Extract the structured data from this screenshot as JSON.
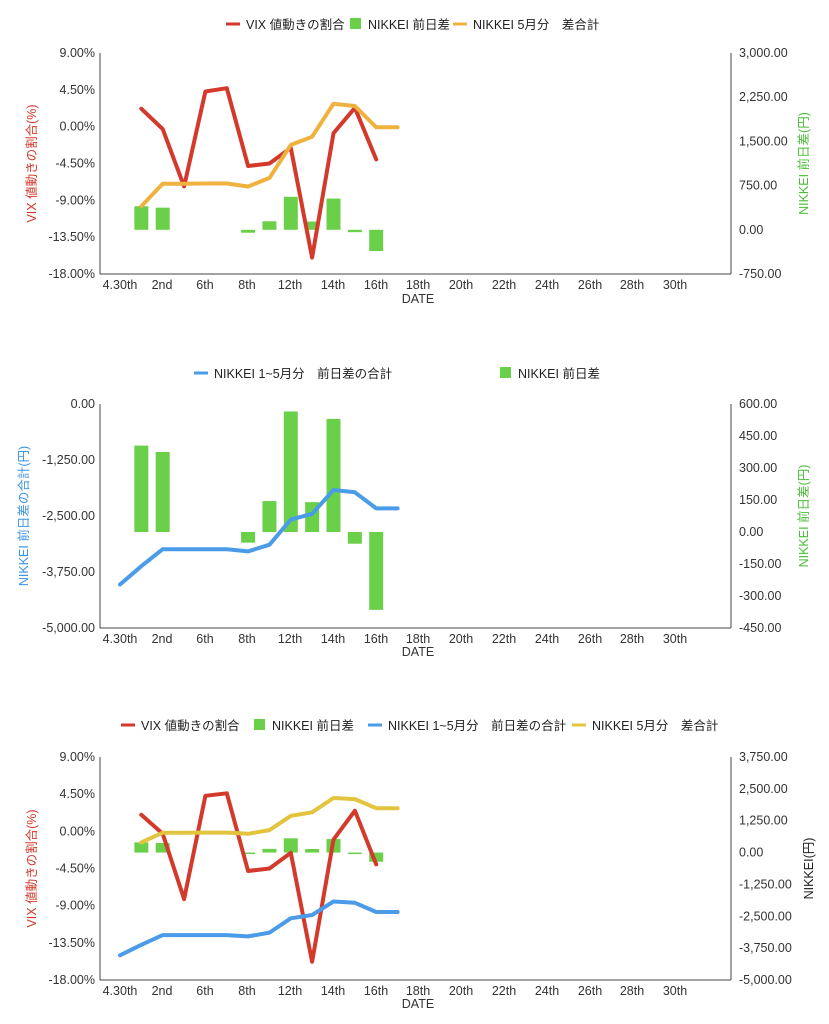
{
  "colors": {
    "vix": "#d33a2c",
    "diff_bar": "#6ad04a",
    "cum_may_orange": "#f0b23e",
    "cum_may_yellow": "#e3c43e",
    "total_blue": "#4a9be8",
    "axis": "#333333"
  },
  "chart_data": [
    {
      "type": "line",
      "legend": [
        "VIX 値動きの割合",
        "NIKKEI 前日差",
        "NIKKEI 5月分　差合計"
      ],
      "xlabel": "DATE",
      "x_ticks": [
        "4.30th",
        "2nd",
        "6th",
        "8th",
        "12th",
        "14th",
        "16th",
        "18th",
        "20th",
        "22th",
        "24th",
        "26th",
        "28th",
        "30th"
      ],
      "y_left_label": "VIX 値動きの割合(%)",
      "y_left_ticks": [
        "9.00%",
        "4.50%",
        "0.00%",
        "-4.50%",
        "-9.00%",
        "-13.50%",
        "-18.00%"
      ],
      "y_left_range": [
        -18,
        9
      ],
      "y_right_label": "NIKKEI 前日差(円)",
      "y_right_ticks": [
        "3,000.00",
        "2,250.00",
        "1,500.00",
        "750.00",
        "0.00",
        "-750.00"
      ],
      "y_right_range": [
        -750,
        3000
      ],
      "series": [
        {
          "name": "VIX 値動きの割合",
          "axis": "left",
          "kind": "line",
          "points": [
            [
              1,
              2.2
            ],
            [
              2,
              -0.3
            ],
            [
              3,
              -7.3
            ],
            [
              4,
              4.3
            ],
            [
              5,
              4.7
            ],
            [
              6,
              -4.8
            ],
            [
              7,
              -4.5
            ],
            [
              8,
              -2.6
            ],
            [
              9,
              -16
            ],
            [
              10,
              -0.8
            ],
            [
              11,
              2.3
            ],
            [
              12,
              -4
            ]
          ]
        },
        {
          "name": "NIKKEI 前日差",
          "axis": "right",
          "kind": "bar",
          "points": [
            [
              1,
              400
            ],
            [
              2,
              375
            ],
            [
              6,
              -50
            ],
            [
              7,
              145
            ],
            [
              8,
              560
            ],
            [
              9,
              140
            ],
            [
              10,
              530
            ],
            [
              11,
              -40
            ],
            [
              12,
              -360
            ]
          ]
        },
        {
          "name": "NIKKEI 5月分　差合計",
          "axis": "right",
          "kind": "line",
          "points": [
            [
              1,
              400
            ],
            [
              2,
              780
            ],
            [
              3,
              780
            ],
            [
              4,
              785
            ],
            [
              5,
              785
            ],
            [
              6,
              735
            ],
            [
              7,
              880
            ],
            [
              8,
              1440
            ],
            [
              9,
              1580
            ],
            [
              10,
              2140
            ],
            [
              11,
              2100
            ],
            [
              12,
              1740
            ],
            [
              13,
              1740
            ]
          ]
        }
      ]
    },
    {
      "type": "line",
      "legend": [
        "NIKKEI 1~5月分　前日差の合計",
        "NIKKEI 前日差"
      ],
      "xlabel": "DATE",
      "x_ticks": [
        "4.30th",
        "2nd",
        "6th",
        "8th",
        "12th",
        "14th",
        "16th",
        "18th",
        "20th",
        "22th",
        "24th",
        "26th",
        "28th",
        "30th"
      ],
      "y_left_label": "NIKKEI 前日差の合計(円)",
      "y_left_ticks": [
        "0.00",
        "-1,250.00",
        "-2,500.00",
        "-3,750.00",
        "-5,000.00"
      ],
      "y_left_range": [
        -5000,
        0
      ],
      "y_right_label": "NIKKEI 前日差(円)",
      "y_right_ticks": [
        "600.00",
        "450.00",
        "300.00",
        "150.00",
        "0.00",
        "-150.00",
        "-300.00",
        "-450.00"
      ],
      "y_right_range": [
        -450,
        600
      ],
      "series": [
        {
          "name": "NIKKEI 1~5月分　前日差の合計",
          "axis": "left",
          "kind": "line",
          "points": [
            [
              0,
              -4030
            ],
            [
              1,
              -3620
            ],
            [
              2,
              -3240
            ],
            [
              3,
              -3240
            ],
            [
              4,
              -3240
            ],
            [
              5,
              -3240
            ],
            [
              6,
              -3290
            ],
            [
              7,
              -3140
            ],
            [
              8,
              -2580
            ],
            [
              9,
              -2450
            ],
            [
              10,
              -1920
            ],
            [
              11,
              -1970
            ],
            [
              12,
              -2330
            ],
            [
              13,
              -2330
            ]
          ]
        },
        {
          "name": "NIKKEI 前日差",
          "axis": "right",
          "kind": "bar",
          "points": [
            [
              1,
              405
            ],
            [
              2,
              375
            ],
            [
              6,
              -50
            ],
            [
              7,
              145
            ],
            [
              8,
              565
            ],
            [
              9,
              140
            ],
            [
              10,
              530
            ],
            [
              11,
              -55
            ],
            [
              12,
              -365
            ]
          ]
        }
      ]
    },
    {
      "type": "line",
      "legend": [
        "VIX 値動きの割合",
        "NIKKEI 前日差",
        "NIKKEI 1~5月分　前日差の合計",
        "NIKKEI 5月分　差合計"
      ],
      "xlabel": "DATE",
      "x_ticks": [
        "4.30th",
        "2nd",
        "6th",
        "8th",
        "12th",
        "14th",
        "16th",
        "18th",
        "20th",
        "22th",
        "24th",
        "26th",
        "28th",
        "30th"
      ],
      "y_left_label": "VIX 値動きの割合(%)",
      "y_left_ticks": [
        "9.00%",
        "4.50%",
        "0.00%",
        "-4.50%",
        "-9.00%",
        "-13.50%",
        "-18.00%"
      ],
      "y_left_range": [
        -18,
        9
      ],
      "y_right_label": "NIKKEI(円)",
      "y_right_ticks": [
        "3,750.00",
        "2,500.00",
        "1,250.00",
        "0.00",
        "-1,250.00",
        "-2,500.00",
        "-3,750.00",
        "-5,000.00"
      ],
      "y_right_range": [
        -5000,
        3750
      ],
      "series": [
        {
          "name": "VIX 値動きの割合",
          "axis": "left",
          "kind": "line",
          "points": [
            [
              1,
              2
            ],
            [
              2,
              -0.3
            ],
            [
              3,
              -8.2
            ],
            [
              4,
              4.3
            ],
            [
              5,
              4.6
            ],
            [
              6,
              -4.8
            ],
            [
              7,
              -4.5
            ],
            [
              8,
              -2.6
            ],
            [
              9,
              -15.8
            ],
            [
              10,
              -1
            ],
            [
              11,
              2.5
            ],
            [
              12,
              -4
            ]
          ]
        },
        {
          "name": "NIKKEI 前日差",
          "axis": "right",
          "kind": "bar",
          "points": [
            [
              1,
              400
            ],
            [
              2,
              375
            ],
            [
              6,
              -50
            ],
            [
              7,
              145
            ],
            [
              8,
              560
            ],
            [
              9,
              140
            ],
            [
              10,
              530
            ],
            [
              11,
              -40
            ],
            [
              12,
              -360
            ]
          ]
        },
        {
          "name": "NIKKEI 1~5月分　前日差の合計",
          "axis": "right",
          "kind": "line",
          "points": [
            [
              0,
              -4030
            ],
            [
              1,
              -3620
            ],
            [
              2,
              -3240
            ],
            [
              3,
              -3240
            ],
            [
              4,
              -3240
            ],
            [
              5,
              -3240
            ],
            [
              6,
              -3290
            ],
            [
              7,
              -3140
            ],
            [
              8,
              -2580
            ],
            [
              9,
              -2450
            ],
            [
              10,
              -1920
            ],
            [
              11,
              -1970
            ],
            [
              12,
              -2330
            ],
            [
              13,
              -2330
            ]
          ]
        },
        {
          "name": "NIKKEI 5月分　差合計",
          "axis": "right",
          "kind": "line",
          "points": [
            [
              1,
              400
            ],
            [
              2,
              780
            ],
            [
              3,
              780
            ],
            [
              4,
              785
            ],
            [
              5,
              785
            ],
            [
              6,
              735
            ],
            [
              7,
              880
            ],
            [
              8,
              1440
            ],
            [
              9,
              1580
            ],
            [
              10,
              2140
            ],
            [
              11,
              2100
            ],
            [
              12,
              1740
            ],
            [
              13,
              1740
            ]
          ]
        }
      ]
    }
  ]
}
